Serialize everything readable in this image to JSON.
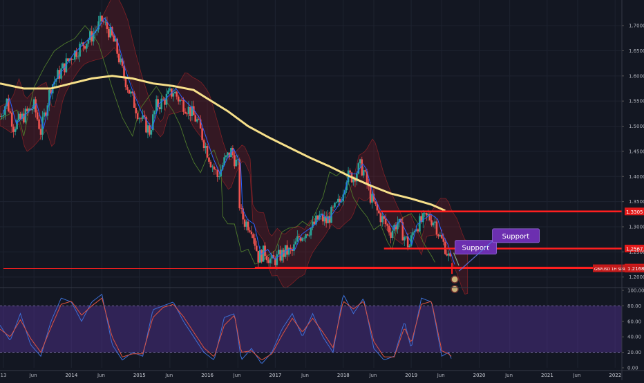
{
  "chart_data": [
    {
      "type": "candlestick",
      "instrument": "GBPUSD",
      "ylim": [
        1.19,
        1.74
      ],
      "y_ticks": [
        "1.7000",
        "1.6500",
        "1.6000",
        "1.5500",
        "1.5000",
        "1.4500",
        "1.4000",
        "1.3500",
        "1.3000",
        "1.2500",
        "1.2000"
      ],
      "x_ticks": [
        {
          "t": 2013.0,
          "label": "13"
        },
        {
          "t": 2013.45,
          "label": "Jun"
        },
        {
          "t": 2014.0,
          "label": "2014"
        },
        {
          "t": 2014.45,
          "label": "Jun"
        },
        {
          "t": 2015.0,
          "label": "2015"
        },
        {
          "t": 2015.45,
          "label": "Jun"
        },
        {
          "t": 2016.0,
          "label": "2016"
        },
        {
          "t": 2016.45,
          "label": "Jun"
        },
        {
          "t": 2017.0,
          "label": "2017"
        },
        {
          "t": 2017.45,
          "label": "Jun"
        },
        {
          "t": 2018.0,
          "label": "2018"
        },
        {
          "t": 2018.45,
          "label": "Jun"
        },
        {
          "t": 2019.0,
          "label": "2019"
        },
        {
          "t": 2019.45,
          "label": "Jun"
        },
        {
          "t": 2020.0,
          "label": "2020"
        },
        {
          "t": 2020.45,
          "label": "Jun"
        },
        {
          "t": 2021.0,
          "label": "2021"
        },
        {
          "t": 2021.45,
          "label": "Jun"
        },
        {
          "t": 2022.0,
          "label": "2022"
        }
      ],
      "price_path": [
        [
          2012.95,
          1.52
        ],
        [
          2013.05,
          1.55
        ],
        [
          2013.15,
          1.5
        ],
        [
          2013.3,
          1.52
        ],
        [
          2013.45,
          1.54
        ],
        [
          2013.55,
          1.49
        ],
        [
          2013.7,
          1.58
        ],
        [
          2013.85,
          1.61
        ],
        [
          2014.0,
          1.64
        ],
        [
          2014.15,
          1.66
        ],
        [
          2014.3,
          1.68
        ],
        [
          2014.45,
          1.71
        ],
        [
          2014.55,
          1.69
        ],
        [
          2014.65,
          1.66
        ],
        [
          2014.75,
          1.61
        ],
        [
          2014.85,
          1.57
        ],
        [
          2015.0,
          1.52
        ],
        [
          2015.15,
          1.49
        ],
        [
          2015.25,
          1.54
        ],
        [
          2015.35,
          1.55
        ],
        [
          2015.5,
          1.57
        ],
        [
          2015.6,
          1.55
        ],
        [
          2015.75,
          1.53
        ],
        [
          2015.85,
          1.51
        ],
        [
          2015.95,
          1.47
        ],
        [
          2016.05,
          1.43
        ],
        [
          2016.15,
          1.4
        ],
        [
          2016.25,
          1.43
        ],
        [
          2016.35,
          1.45
        ],
        [
          2016.45,
          1.42
        ],
        [
          2016.48,
          1.33
        ],
        [
          2016.55,
          1.31
        ],
        [
          2016.65,
          1.3
        ],
        [
          2016.75,
          1.24
        ],
        [
          2016.85,
          1.25
        ],
        [
          2016.95,
          1.23
        ],
        [
          2017.05,
          1.24
        ],
        [
          2017.15,
          1.25
        ],
        [
          2017.25,
          1.25
        ],
        [
          2017.35,
          1.28
        ],
        [
          2017.45,
          1.29
        ],
        [
          2017.55,
          1.3
        ],
        [
          2017.65,
          1.32
        ],
        [
          2017.75,
          1.31
        ],
        [
          2017.85,
          1.33
        ],
        [
          2017.95,
          1.35
        ],
        [
          2018.05,
          1.4
        ],
        [
          2018.15,
          1.4
        ],
        [
          2018.25,
          1.42
        ],
        [
          2018.3,
          1.41
        ],
        [
          2018.4,
          1.36
        ],
        [
          2018.5,
          1.33
        ],
        [
          2018.6,
          1.31
        ],
        [
          2018.7,
          1.29
        ],
        [
          2018.8,
          1.31
        ],
        [
          2018.9,
          1.28
        ],
        [
          2018.97,
          1.26
        ],
        [
          2019.05,
          1.3
        ],
        [
          2019.15,
          1.31
        ],
        [
          2019.25,
          1.32
        ],
        [
          2019.35,
          1.31
        ],
        [
          2019.42,
          1.28
        ],
        [
          2019.5,
          1.26
        ],
        [
          2019.55,
          1.24
        ],
        [
          2019.6,
          1.22
        ]
      ],
      "baseline_ma": [
        [
          2012.95,
          1.585
        ],
        [
          2013.3,
          1.575
        ],
        [
          2013.7,
          1.575
        ],
        [
          2014.0,
          1.585
        ],
        [
          2014.3,
          1.595
        ],
        [
          2014.6,
          1.6
        ],
        [
          2014.9,
          1.595
        ],
        [
          2015.2,
          1.585
        ],
        [
          2015.5,
          1.58
        ],
        [
          2015.8,
          1.572
        ],
        [
          2016.0,
          1.555
        ],
        [
          2016.3,
          1.53
        ],
        [
          2016.6,
          1.5
        ],
        [
          2016.9,
          1.478
        ],
        [
          2017.2,
          1.458
        ],
        [
          2017.5,
          1.438
        ],
        [
          2017.8,
          1.42
        ],
        [
          2018.1,
          1.4
        ],
        [
          2018.4,
          1.382
        ],
        [
          2018.7,
          1.366
        ],
        [
          2019.0,
          1.356
        ],
        [
          2019.3,
          1.344
        ],
        [
          2019.5,
          1.332
        ]
      ],
      "horizontal_levels": [
        {
          "price_label": "1.3305",
          "value": 1.3305,
          "t_start": 2018.55
        },
        {
          "price_label": "1.2567",
          "value": 1.2567,
          "t_start": 2018.6
        },
        {
          "price_label": "1.2187",
          "value": 1.2187,
          "t_start": 2016.7
        },
        {
          "price_label": "1.2168",
          "value": 1.2168,
          "t_start": 2013.0
        }
      ],
      "current_price_label": "GBPUSD 1H SPR",
      "current_price": "1.2168",
      "annotations": [
        {
          "text": "Support",
          "t": 2019.95,
          "y": 1.262
        },
        {
          "text": "Support",
          "t": 2020.5,
          "y": 1.285
        }
      ]
    },
    {
      "type": "line",
      "indicator": "oscillator",
      "ylim": [
        0,
        100
      ],
      "band": [
        20,
        80
      ],
      "y_ticks": [
        "100.00",
        "80.00",
        "60.00",
        "40.00",
        "20.00",
        "0.00"
      ],
      "series": [
        {
          "color": "#3d6fd6",
          "values": [
            [
              2012.95,
              55
            ],
            [
              2013.1,
              35
            ],
            [
              2013.25,
              70
            ],
            [
              2013.4,
              30
            ],
            [
              2013.55,
              15
            ],
            [
              2013.7,
              60
            ],
            [
              2013.85,
              90
            ],
            [
              2014.0,
              85
            ],
            [
              2014.15,
              60
            ],
            [
              2014.3,
              85
            ],
            [
              2014.45,
              95
            ],
            [
              2014.6,
              30
            ],
            [
              2014.75,
              10
            ],
            [
              2014.9,
              20
            ],
            [
              2015.05,
              15
            ],
            [
              2015.2,
              75
            ],
            [
              2015.35,
              80
            ],
            [
              2015.5,
              85
            ],
            [
              2015.65,
              60
            ],
            [
              2015.8,
              40
            ],
            [
              2015.95,
              20
            ],
            [
              2016.1,
              10
            ],
            [
              2016.25,
              65
            ],
            [
              2016.4,
              70
            ],
            [
              2016.5,
              10
            ],
            [
              2016.65,
              25
            ],
            [
              2016.8,
              5
            ],
            [
              2016.95,
              20
            ],
            [
              2017.1,
              50
            ],
            [
              2017.25,
              70
            ],
            [
              2017.4,
              40
            ],
            [
              2017.55,
              70
            ],
            [
              2017.7,
              40
            ],
            [
              2017.85,
              20
            ],
            [
              2018.0,
              95
            ],
            [
              2018.15,
              70
            ],
            [
              2018.3,
              90
            ],
            [
              2018.45,
              25
            ],
            [
              2018.6,
              10
            ],
            [
              2018.75,
              15
            ],
            [
              2018.9,
              60
            ],
            [
              2019.0,
              25
            ],
            [
              2019.15,
              90
            ],
            [
              2019.3,
              85
            ],
            [
              2019.45,
              15
            ],
            [
              2019.55,
              20
            ],
            [
              2019.6,
              10
            ]
          ]
        },
        {
          "color": "#e0533f",
          "values": [
            [
              2012.95,
              50
            ],
            [
              2013.1,
              40
            ],
            [
              2013.25,
              62
            ],
            [
              2013.4,
              38
            ],
            [
              2013.55,
              20
            ],
            [
              2013.7,
              52
            ],
            [
              2013.85,
              82
            ],
            [
              2014.0,
              86
            ],
            [
              2014.15,
              68
            ],
            [
              2014.3,
              80
            ],
            [
              2014.45,
              90
            ],
            [
              2014.6,
              40
            ],
            [
              2014.75,
              14
            ],
            [
              2014.9,
              18
            ],
            [
              2015.05,
              18
            ],
            [
              2015.2,
              65
            ],
            [
              2015.35,
              78
            ],
            [
              2015.5,
              82
            ],
            [
              2015.65,
              66
            ],
            [
              2015.8,
              46
            ],
            [
              2015.95,
              26
            ],
            [
              2016.1,
              14
            ],
            [
              2016.25,
              55
            ],
            [
              2016.4,
              68
            ],
            [
              2016.5,
              20
            ],
            [
              2016.65,
              22
            ],
            [
              2016.8,
              10
            ],
            [
              2016.95,
              18
            ],
            [
              2017.1,
              42
            ],
            [
              2017.25,
              64
            ],
            [
              2017.4,
              46
            ],
            [
              2017.55,
              64
            ],
            [
              2017.7,
              46
            ],
            [
              2017.85,
              26
            ],
            [
              2018.0,
              86
            ],
            [
              2018.15,
              76
            ],
            [
              2018.3,
              86
            ],
            [
              2018.45,
              34
            ],
            [
              2018.6,
              14
            ],
            [
              2018.75,
              14
            ],
            [
              2018.9,
              52
            ],
            [
              2019.0,
              32
            ],
            [
              2019.15,
              82
            ],
            [
              2019.3,
              86
            ],
            [
              2019.45,
              22
            ],
            [
              2019.55,
              18
            ],
            [
              2019.6,
              14
            ]
          ]
        }
      ]
    }
  ]
}
